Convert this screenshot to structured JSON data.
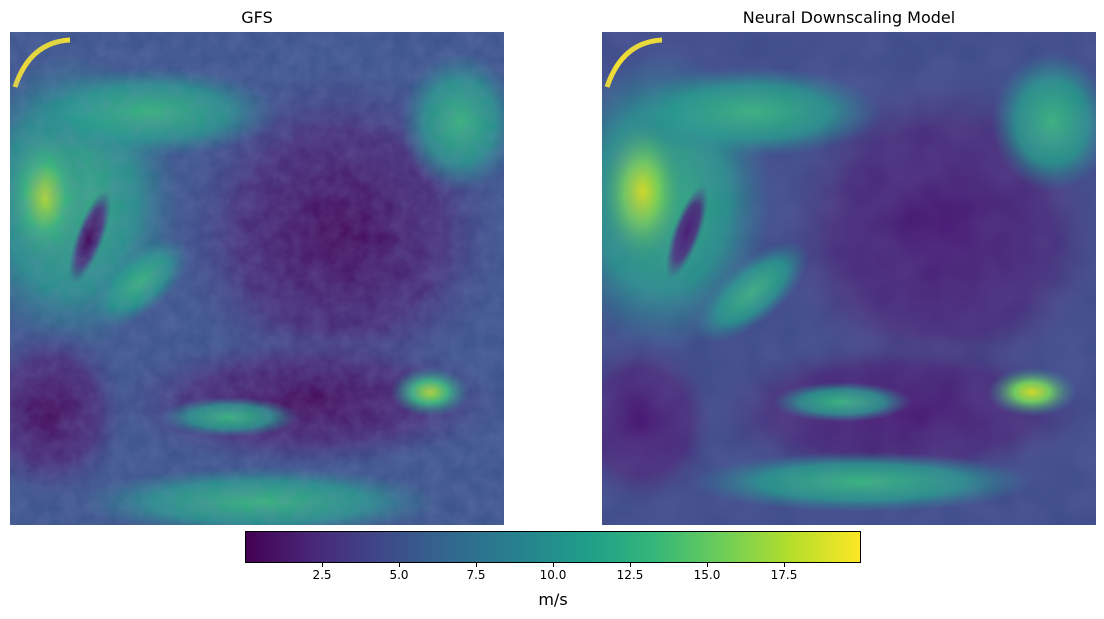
{
  "chart_data": [
    {
      "type": "heatmap",
      "title": "GFS",
      "description_axis": "off",
      "colormap": "viridis",
      "vmin": 0,
      "vmax": 20
    },
    {
      "type": "heatmap",
      "title": "Neural Downscaling Model",
      "description_axis": "off",
      "colormap": "viridis",
      "vmin": 0,
      "vmax": 20
    }
  ],
  "colorbar": {
    "label": "m/s",
    "range": [
      0,
      20
    ],
    "ticks": [
      "2.5",
      "5.0",
      "7.5",
      "10.0",
      "12.5",
      "15.0",
      "17.5"
    ],
    "tick_values": [
      2.5,
      5.0,
      7.5,
      10.0,
      12.5,
      15.0,
      17.5
    ],
    "colors": [
      "#440154",
      "#482878",
      "#3e4989",
      "#31688e",
      "#26828e",
      "#1f9e89",
      "#35b779",
      "#6ece58",
      "#b5de2b",
      "#fde725"
    ]
  }
}
